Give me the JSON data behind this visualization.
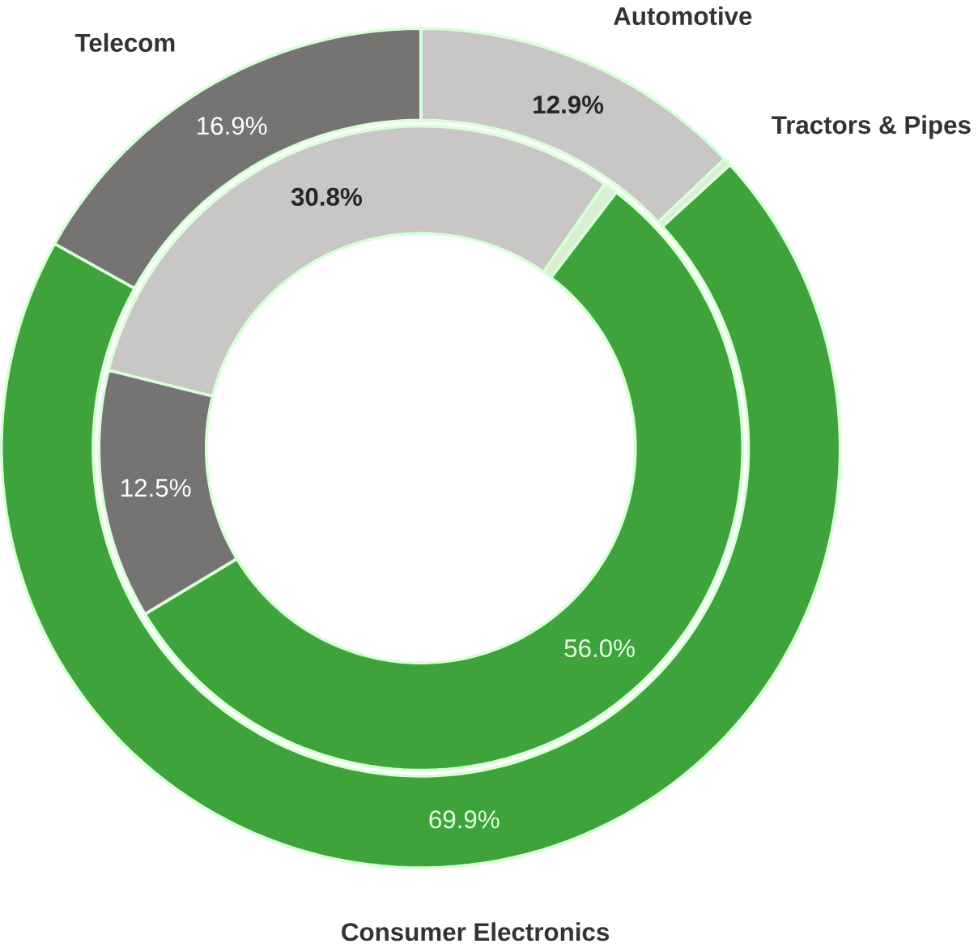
{
  "chart_data": {
    "type": "donut",
    "categories": [
      "Automotive",
      "Tractors & Pipes",
      "Consumer Electronics",
      "Telecom"
    ],
    "colors": [
      "#c9c7c5",
      "#d9efd2",
      "#3da33a",
      "#767473"
    ],
    "series": [
      {
        "values": [
          12.9,
          0.3,
          69.9,
          16.9
        ],
        "value_labels": [
          "12.9%",
          null,
          "69.9%",
          "16.9%"
        ]
      },
      {
        "values": [
          30.8,
          0.7,
          56.0,
          12.5
        ],
        "value_labels": [
          "30.8%",
          null,
          "56.0%",
          "12.5%"
        ]
      }
    ]
  }
}
